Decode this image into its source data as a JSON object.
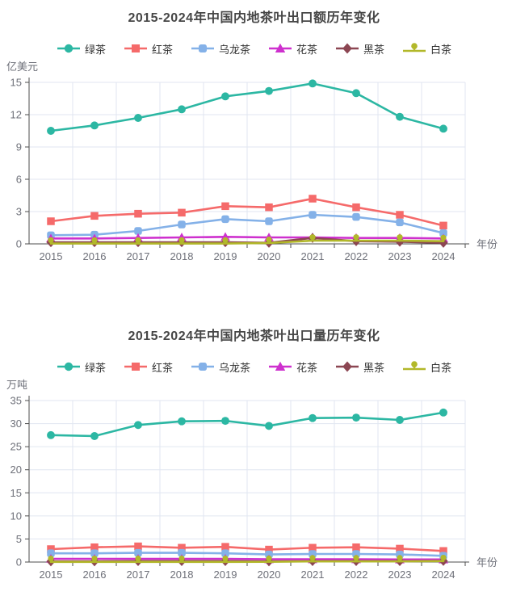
{
  "page_title": "2015-2024年中国内地茶叶出口历年变化",
  "chart_data": [
    {
      "type": "line",
      "title": "2015-2024年中国内地茶叶出口额历年变化",
      "ylabel": "亿美元",
      "xlabel": "年份",
      "grid": true,
      "legend_position": "top",
      "ylim": [
        0,
        15
      ],
      "ytick_step": 3,
      "categories": [
        "2015",
        "2016",
        "2017",
        "2018",
        "2019",
        "2020",
        "2021",
        "2022",
        "2023",
        "2024"
      ],
      "series": [
        {
          "name": "绿茶",
          "symbol": "circle",
          "color": "#2cb7a3",
          "values": [
            10.5,
            11.0,
            11.7,
            12.5,
            13.7,
            14.2,
            14.9,
            14.0,
            11.8,
            10.7
          ]
        },
        {
          "name": "红茶",
          "symbol": "rect",
          "color": "#f56a6a",
          "values": [
            2.1,
            2.6,
            2.8,
            2.9,
            3.5,
            3.4,
            4.2,
            3.4,
            2.7,
            1.7
          ]
        },
        {
          "name": "乌龙茶",
          "symbol": "roundRect",
          "color": "#84b1e8",
          "values": [
            0.8,
            0.85,
            1.2,
            1.8,
            2.3,
            2.1,
            2.7,
            2.5,
            2.0,
            1.0
          ]
        },
        {
          "name": "花茶",
          "symbol": "triangle",
          "color": "#ce30ce",
          "values": [
            0.5,
            0.5,
            0.55,
            0.6,
            0.65,
            0.6,
            0.6,
            0.55,
            0.55,
            0.5
          ]
        },
        {
          "name": "黑茶",
          "symbol": "diamond",
          "color": "#8c4652",
          "values": [
            0.15,
            0.15,
            0.15,
            0.15,
            0.15,
            0.1,
            0.55,
            0.25,
            0.2,
            0.1
          ]
        },
        {
          "name": "白茶",
          "symbol": "pin",
          "color": "#b2b82a",
          "values": [
            0.03,
            0.03,
            0.03,
            0.03,
            0.03,
            0.08,
            0.3,
            0.3,
            0.3,
            0.25
          ]
        }
      ]
    },
    {
      "type": "line",
      "title": "2015-2024年中国内地茶叶出口量历年变化",
      "ylabel": "万吨",
      "xlabel": "年份",
      "grid": true,
      "legend_position": "top",
      "ylim": [
        0,
        35
      ],
      "ytick_step": 5,
      "categories": [
        "2015",
        "2016",
        "2017",
        "2018",
        "2019",
        "2020",
        "2021",
        "2022",
        "2023",
        "2024"
      ],
      "series": [
        {
          "name": "绿茶",
          "symbol": "circle",
          "color": "#2cb7a3",
          "values": [
            27.5,
            27.3,
            29.7,
            30.5,
            30.6,
            29.5,
            31.2,
            31.3,
            30.8,
            32.4
          ]
        },
        {
          "name": "红茶",
          "symbol": "rect",
          "color": "#f56a6a",
          "values": [
            2.8,
            3.2,
            3.4,
            3.1,
            3.3,
            2.7,
            3.1,
            3.2,
            2.9,
            2.4
          ]
        },
        {
          "name": "乌龙茶",
          "symbol": "roundRect",
          "color": "#84b1e8",
          "values": [
            1.9,
            1.9,
            2.0,
            2.0,
            1.9,
            1.65,
            1.75,
            1.75,
            1.65,
            1.35
          ]
        },
        {
          "name": "花茶",
          "symbol": "triangle",
          "color": "#ce30ce",
          "values": [
            0.7,
            0.7,
            0.7,
            0.7,
            0.7,
            0.6,
            0.6,
            0.6,
            0.55,
            0.55
          ]
        },
        {
          "name": "黑茶",
          "symbol": "diamond",
          "color": "#8c4652",
          "values": [
            0.15,
            0.15,
            0.2,
            0.2,
            0.2,
            0.15,
            0.2,
            0.2,
            0.2,
            0.25
          ]
        },
        {
          "name": "白茶",
          "symbol": "pin",
          "color": "#b2b82a",
          "values": [
            0.03,
            0.03,
            0.03,
            0.03,
            0.03,
            0.05,
            0.15,
            0.15,
            0.15,
            0.2
          ]
        }
      ]
    }
  ],
  "style": {
    "grid_line_color": "#E0E6F1",
    "axis_line_color": "#4d4d4d",
    "tick_label_color": "#6E7079",
    "title_color": "#464646"
  }
}
